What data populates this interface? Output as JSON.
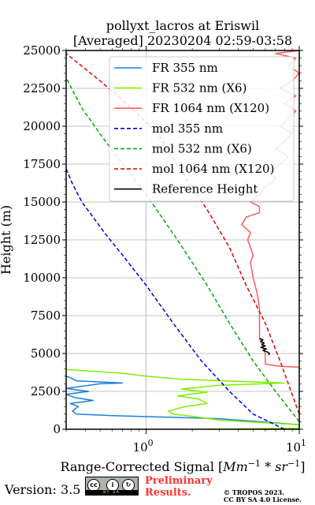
{
  "chart_data": {
    "type": "line",
    "title": "pollyxt_lacros at Eriswil",
    "subtitle": "[Averaged] 20230204 02:59-03:58",
    "xlabel": "Range-Corrected Signal [Mm^-1 * sr^-1]",
    "ylabel": "Height (m)",
    "xscale": "log",
    "xlim": [
      0.3,
      10
    ],
    "ylim": [
      0,
      25000
    ],
    "x_tick_labels": [
      "10^0",
      "10^1"
    ],
    "y_ticks": [
      0,
      2500,
      5000,
      7500,
      10000,
      12500,
      15000,
      17500,
      20000,
      22500,
      25000
    ],
    "grid": true,
    "legend_position": "top-right",
    "series": [
      {
        "name": "FR 355 nm",
        "color": "#1f7fd8",
        "style": "solid",
        "points": [
          [
            6.0,
            0
          ],
          [
            10,
            30
          ],
          [
            10,
            300
          ],
          [
            3.0,
            700
          ],
          [
            0.6,
            900
          ],
          [
            0.35,
            1000
          ],
          [
            0.33,
            1200
          ],
          [
            0.36,
            1500
          ],
          [
            0.32,
            1700
          ],
          [
            0.45,
            1900
          ],
          [
            0.34,
            2100
          ],
          [
            0.3,
            2300
          ],
          [
            0.42,
            2500
          ],
          [
            0.3,
            2700
          ],
          [
            0.5,
            3000
          ],
          [
            0.7,
            3050
          ],
          [
            0.35,
            3200
          ],
          [
            0.32,
            3400
          ],
          [
            0.3,
            3500
          ]
        ]
      },
      {
        "name": "FR 532 nm (X6)",
        "color": "#7fef00",
        "style": "solid",
        "points": [
          [
            2.5,
            0
          ],
          [
            10,
            60
          ],
          [
            10,
            300
          ],
          [
            3.0,
            600
          ],
          [
            2.2,
            800
          ],
          [
            1.5,
            1000
          ],
          [
            1.4,
            1200
          ],
          [
            1.8,
            1500
          ],
          [
            2.5,
            1700
          ],
          [
            2.2,
            2000
          ],
          [
            1.6,
            2200
          ],
          [
            2.5,
            2450
          ],
          [
            1.7,
            2650
          ],
          [
            3.0,
            2900
          ],
          [
            8.0,
            3050
          ],
          [
            1.7,
            3300
          ],
          [
            1.0,
            3500
          ],
          [
            0.7,
            3700
          ],
          [
            0.3,
            3950
          ]
        ]
      },
      {
        "name": "FR 1064 nm (X120)",
        "color": "#ff5a5a",
        "style": "solid",
        "points": [
          [
            10,
            4100
          ],
          [
            7.5,
            4150
          ],
          [
            6.0,
            4300
          ],
          [
            6.0,
            5000
          ],
          [
            5.5,
            6000
          ],
          [
            5.5,
            7000
          ],
          [
            5.5,
            8000
          ],
          [
            5.3,
            9000
          ],
          [
            5.0,
            10000
          ],
          [
            4.8,
            11000
          ],
          [
            5.0,
            11500
          ],
          [
            4.6,
            12500
          ],
          [
            4.8,
            13000
          ],
          [
            4.2,
            13500
          ],
          [
            4.5,
            14000
          ],
          [
            5.5,
            14300
          ],
          [
            5.5,
            14700
          ],
          [
            4.8,
            15000
          ],
          [
            5.5,
            15500
          ],
          [
            6.0,
            16000
          ],
          [
            7.0,
            16500
          ],
          [
            6.5,
            17000
          ],
          [
            7.5,
            17500
          ],
          [
            8.5,
            18000
          ],
          [
            7.0,
            18500
          ],
          [
            8.0,
            19000
          ],
          [
            9.0,
            19500
          ],
          [
            7.5,
            20000
          ],
          [
            8.5,
            20500
          ],
          [
            9.5,
            21000
          ],
          [
            8.0,
            21500
          ],
          [
            9.5,
            22000
          ],
          [
            7.5,
            22500
          ],
          [
            9.0,
            23000
          ],
          [
            10,
            23500
          ],
          [
            8.5,
            24000
          ],
          [
            9.5,
            24500
          ],
          [
            7.0,
            24800
          ],
          [
            10,
            25000
          ]
        ]
      },
      {
        "name": "mol 355 nm",
        "color": "#0000dd",
        "style": "dashed",
        "points": [
          [
            8.0,
            0
          ],
          [
            5.0,
            1000
          ],
          [
            3.5,
            2500
          ],
          [
            2.3,
            4500
          ],
          [
            1.5,
            7000
          ],
          [
            1.0,
            9500
          ],
          [
            0.7,
            11500
          ],
          [
            0.55,
            12800
          ],
          [
            0.45,
            14000
          ],
          [
            0.38,
            15000
          ],
          [
            0.33,
            16200
          ],
          [
            0.3,
            17200
          ]
        ]
      },
      {
        "name": "mol 532 nm (X6)",
        "color": "#00aa00",
        "style": "dashed",
        "points": [
          [
            10,
            500
          ],
          [
            7.0,
            2500
          ],
          [
            5.0,
            4500
          ],
          [
            3.5,
            7000
          ],
          [
            2.5,
            9500
          ],
          [
            1.6,
            12500
          ],
          [
            1.0,
            15500
          ],
          [
            0.7,
            17500
          ],
          [
            0.5,
            19500
          ],
          [
            0.38,
            21200
          ],
          [
            0.3,
            23200
          ]
        ]
      },
      {
        "name": "mol 1064 nm (X120)",
        "color": "#dd0000",
        "style": "dashed",
        "points": [
          [
            10,
            1000
          ],
          [
            7.5,
            4500
          ],
          [
            6.0,
            7000
          ],
          [
            4.5,
            9500
          ],
          [
            3.5,
            12000
          ],
          [
            2.5,
            14500
          ],
          [
            1.7,
            17000
          ],
          [
            1.2,
            19500
          ],
          [
            0.8,
            21200
          ],
          [
            0.5,
            23000
          ],
          [
            0.3,
            24800
          ]
        ]
      },
      {
        "name": "Reference Height",
        "color": "#000000",
        "style": "solid",
        "points": [
          [
            5.5,
            6000
          ],
          [
            5.8,
            5900
          ],
          [
            5.6,
            5800
          ],
          [
            5.9,
            5700
          ],
          [
            5.7,
            5600
          ],
          [
            6.0,
            5500
          ],
          [
            5.6,
            5400
          ],
          [
            6.1,
            5300
          ],
          [
            5.8,
            5200
          ],
          [
            6.2,
            5100
          ],
          [
            6.4,
            5000
          ],
          [
            6.3,
            4900
          ]
        ]
      }
    ]
  },
  "footer": {
    "version": "Version: 3.5",
    "license_badge": {
      "icon": "creative-commons-by-sa-icon",
      "text": "BY SA"
    },
    "prelim_line1": "Preliminary",
    "prelim_line2": "Results.",
    "copyright_line1": "© TROPOS 2023.",
    "copyright_line2": "CC BY SA 4.0 License."
  }
}
